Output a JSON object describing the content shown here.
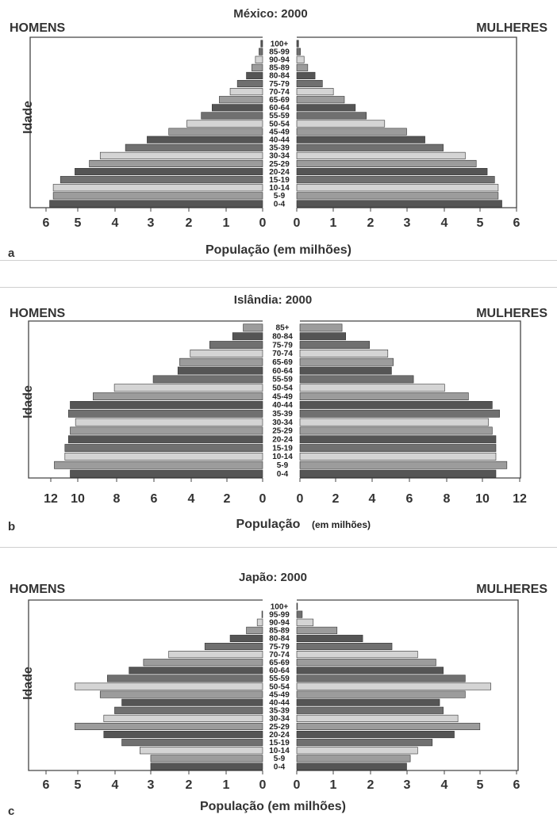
{
  "chart_data": [
    {
      "type": "bar",
      "orientation": "horizontal",
      "layout": "population-pyramid",
      "title": "México: 2000",
      "left_label": "HOMENS",
      "right_label": "MULHERES",
      "ylabel": "Idade",
      "xlabel": "População (em milhões)",
      "panel_letter": "a",
      "xlim": [
        0,
        6
      ],
      "xticks": [
        "6",
        "5",
        "4",
        "3",
        "2",
        "1",
        "0",
        "0",
        "1",
        "2",
        "3",
        "4",
        "5",
        "6"
      ],
      "categories": [
        "0-4",
        "5-9",
        "10-14",
        "15-19",
        "20-24",
        "25-29",
        "30-34",
        "35-39",
        "40-44",
        "45-49",
        "50-54",
        "55-59",
        "60-64",
        "65-69",
        "70-74",
        "75-79",
        "80-84",
        "85-89",
        "90-94",
        "85-99",
        "100+"
      ],
      "series": [
        {
          "name": "HOMENS",
          "values": [
            5.9,
            5.8,
            5.8,
            5.6,
            5.2,
            4.8,
            4.5,
            3.8,
            3.2,
            2.6,
            2.1,
            1.7,
            1.4,
            1.2,
            0.9,
            0.7,
            0.45,
            0.3,
            0.2,
            0.1,
            0.05
          ]
        },
        {
          "name": "MULHERES",
          "values": [
            5.6,
            5.5,
            5.5,
            5.4,
            5.2,
            4.9,
            4.6,
            4.0,
            3.5,
            3.0,
            2.4,
            1.9,
            1.6,
            1.3,
            1.0,
            0.7,
            0.5,
            0.3,
            0.2,
            0.1,
            0.05
          ]
        }
      ],
      "shades": [
        "#555555",
        "#9c9c9c",
        "#d4d4d4",
        "#707070"
      ]
    },
    {
      "type": "bar",
      "orientation": "horizontal",
      "layout": "population-pyramid",
      "title": "Islândia: 2000",
      "left_label": "HOMENS",
      "right_label": "MULHERES",
      "ylabel": "Idade",
      "xlabel": "População",
      "xlabel_small": "(em milhões)",
      "panel_letter": "b",
      "xlim": [
        0,
        12
      ],
      "xticks": [
        "12",
        "10",
        "8",
        "6",
        "4",
        "2",
        "0",
        "0",
        "2",
        "4",
        "6",
        "8",
        "10",
        "12"
      ],
      "categories": [
        "0-4",
        "5-9",
        "10-14",
        "15-19",
        "20-24",
        "25-29",
        "30-34",
        "35-39",
        "40-44",
        "45-49",
        "50-54",
        "55-59",
        "60-64",
        "65-69",
        "70-74",
        "75-79",
        "80-84",
        "85+"
      ],
      "series": [
        {
          "name": "HOMENS",
          "values": [
            10.9,
            11.8,
            11.2,
            11.2,
            11.0,
            10.9,
            10.6,
            11.0,
            10.9,
            9.6,
            8.4,
            6.2,
            4.8,
            4.7,
            4.1,
            3.0,
            1.7,
            1.1
          ]
        },
        {
          "name": "MULHERES",
          "values": [
            10.7,
            11.3,
            10.7,
            10.7,
            10.7,
            10.5,
            10.3,
            10.9,
            10.5,
            9.2,
            7.9,
            6.2,
            5.0,
            5.1,
            4.8,
            3.8,
            2.5,
            2.3
          ]
        }
      ],
      "shades": [
        "#555555",
        "#9c9c9c",
        "#d4d4d4",
        "#707070"
      ]
    },
    {
      "type": "bar",
      "orientation": "horizontal",
      "layout": "population-pyramid",
      "title": "Japão: 2000",
      "left_label": "HOMENS",
      "right_label": "MULHERES",
      "ylabel": "Idade",
      "xlabel": "População (em milhões)",
      "panel_letter": "c",
      "xlim": [
        0,
        6
      ],
      "xticks": [
        "6",
        "5",
        "4",
        "3",
        "2",
        "1",
        "0",
        "0",
        "1",
        "2",
        "3",
        "4",
        "5",
        "6"
      ],
      "categories": [
        "0-4",
        "5-9",
        "10-14",
        "15-19",
        "20-24",
        "25-29",
        "30-34",
        "35-39",
        "40-44",
        "45-49",
        "50-54",
        "55-59",
        "60-64",
        "65-69",
        "70-74",
        "75-79",
        "80-84",
        "85-89",
        "90-94",
        "95-99",
        "100+"
      ],
      "series": [
        {
          "name": "HOMENS",
          "values": [
            3.1,
            3.1,
            3.4,
            3.9,
            4.4,
            5.2,
            4.4,
            4.1,
            3.9,
            4.5,
            5.2,
            4.3,
            3.7,
            3.3,
            2.6,
            1.6,
            0.9,
            0.45,
            0.15,
            0.02,
            0.0
          ]
        },
        {
          "name": "MULHERES",
          "values": [
            3.0,
            3.1,
            3.3,
            3.7,
            4.3,
            5.0,
            4.4,
            4.0,
            3.9,
            4.6,
            5.3,
            4.6,
            4.0,
            3.8,
            3.3,
            2.6,
            1.8,
            1.1,
            0.45,
            0.15,
            0.02
          ]
        }
      ],
      "shades": [
        "#555555",
        "#9c9c9c",
        "#d4d4d4",
        "#707070"
      ]
    }
  ]
}
